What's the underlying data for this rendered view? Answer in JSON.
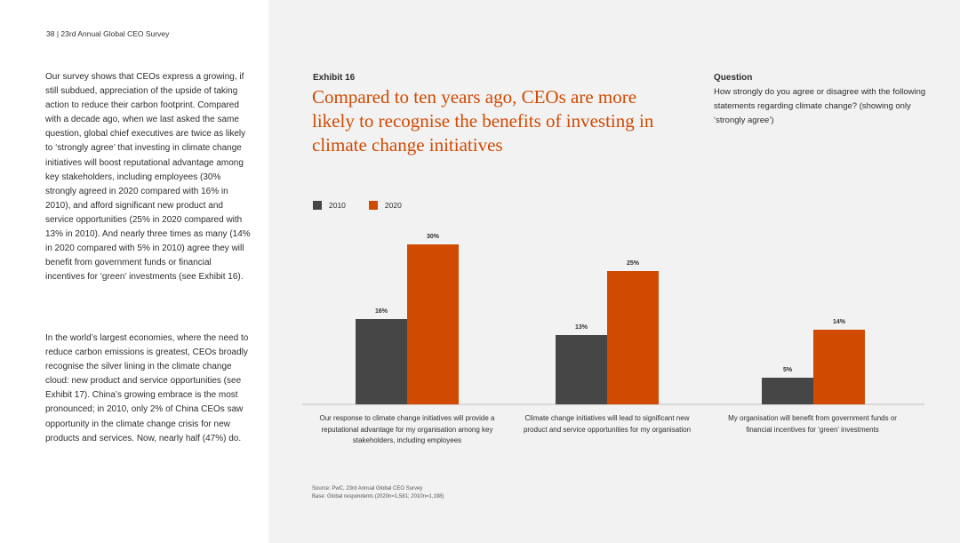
{
  "header": {
    "page_number": "38",
    "publication": "23rd Annual Global CEO Survey"
  },
  "left_text": {
    "para1": "Our survey shows that CEOs express a growing, if still subdued, appreciation of the upside of taking action to reduce their carbon footprint. Compared with a decade ago, when we last asked the same question, global chief executives are twice as likely to ‘strongly agree’ that investing in climate change initiatives will boost reputational advantage among key stakeholders, including employees (30% strongly agreed in 2020 compared with 16% in 2010), and afford significant new product and service opportunities (25% in 2020 compared with 13% in 2010). And nearly three times as many (14% in 2020 compared with 5% in 2010) agree they will benefit from government funds or financial incentives for ‘green’ investments (see Exhibit 16).",
    "para2": "In the world’s largest economies, where the need to reduce carbon emissions is greatest, CEOs broadly recognise the silver lining in the climate change cloud: new product and service opportunities (see Exhibit 17). China’s growing embrace is the most pronounced; in 2010, only 2% of China CEOs saw opportunity in the climate change crisis for new products and services. Now, nearly half (47%) do."
  },
  "exhibit": {
    "label": "Exhibit 16",
    "title": "Compared to ten years ago, CEOs are more likely to recognise the benefits of investing in climate change initiatives"
  },
  "question": {
    "label": "Question",
    "text": "How strongly do you agree or disagree with the following statements regarding climate change? (showing only ‘strongly agree’)"
  },
  "colors": {
    "series_2010": "#464646",
    "series_2020": "#d04a02",
    "accent": "#d04a02"
  },
  "chart_data": {
    "type": "bar",
    "title": "Compared to ten years ago, CEOs are more likely to recognise the benefits of investing in climate change initiatives",
    "categories": [
      "Our response to climate change initiatives will provide a reputational advantage for my organisation among key stakeholders, including employees",
      "Climate change initiatives will lead to significant new product and service opportunities for my organisation",
      "My organisation will benefit from government funds or financial incentives for ‘green’ investments"
    ],
    "series": [
      {
        "name": "2010",
        "values": [
          16,
          13,
          5
        ],
        "labels": [
          "16%",
          "13%",
          "5%"
        ]
      },
      {
        "name": "2020",
        "values": [
          30,
          25,
          14
        ],
        "labels": [
          "30%",
          "25%",
          "14%"
        ]
      }
    ],
    "xlabel": "",
    "ylabel": "",
    "ylim": [
      0,
      30
    ],
    "grid": false,
    "legend": "top-left"
  },
  "source": {
    "line1": "Source: PwC, 23rd Annual Global CEO Survey",
    "line2": "Base: Global respondents (2020n=1,581; 2010n=1,198)"
  }
}
